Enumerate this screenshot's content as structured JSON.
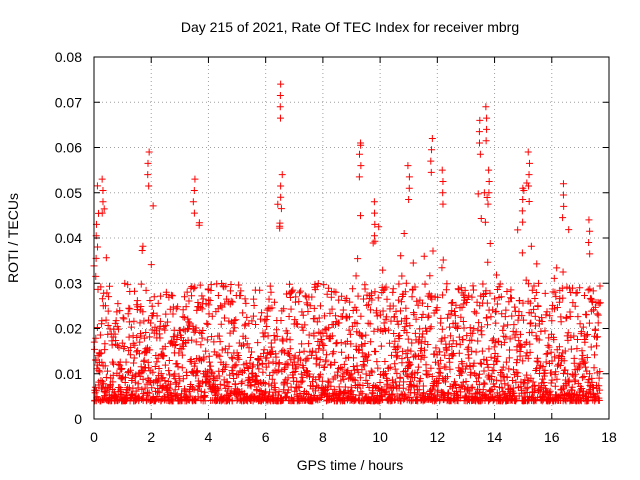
{
  "chart_data": {
    "type": "scatter",
    "title": "Day 215 of 2021, Rate Of TEC Index for receiver mbrg",
    "xlabel": "GPS time / hours",
    "ylabel": "ROTI / TECUs",
    "xlim": [
      0,
      18
    ],
    "ylim": [
      0,
      0.08
    ],
    "x_ticks": [
      0,
      2,
      4,
      6,
      8,
      10,
      12,
      14,
      16,
      18
    ],
    "x_tick_labels": [
      "0",
      "2",
      "4",
      "6",
      "8",
      "10",
      "12",
      "14",
      "16",
      "18"
    ],
    "y_ticks": [
      0,
      0.01,
      0.02,
      0.03,
      0.04,
      0.05,
      0.06,
      0.07,
      0.08
    ],
    "y_tick_labels": [
      "0",
      "0.01",
      "0.02",
      "0.03",
      "0.04",
      "0.05",
      "0.06",
      "0.07",
      "0.08"
    ],
    "grid": true,
    "marker": "+",
    "marker_color": "#ff0000",
    "series": [
      {
        "name": "ROTI",
        "x_range": [
          0,
          17.7
        ],
        "baseline": 0.012,
        "typical_spread": [
          0.004,
          0.03
        ],
        "peaks": [
          {
            "x": 0.3,
            "y": 0.053
          },
          {
            "x": 0.1,
            "y": 0.043
          },
          {
            "x": 1.9,
            "y": 0.059
          },
          {
            "x": 3.5,
            "y": 0.053
          },
          {
            "x": 6.5,
            "y": 0.074
          },
          {
            "x": 6.55,
            "y": 0.054
          },
          {
            "x": 9.3,
            "y": 0.061
          },
          {
            "x": 9.8,
            "y": 0.048
          },
          {
            "x": 11.0,
            "y": 0.056
          },
          {
            "x": 11.8,
            "y": 0.062
          },
          {
            "x": 12.2,
            "y": 0.055
          },
          {
            "x": 13.5,
            "y": 0.066
          },
          {
            "x": 13.7,
            "y": 0.069
          },
          {
            "x": 15.2,
            "y": 0.059
          },
          {
            "x": 15.0,
            "y": 0.051
          },
          {
            "x": 16.4,
            "y": 0.052
          },
          {
            "x": 17.3,
            "y": 0.044
          },
          {
            "x": 13.8,
            "y": 0.055
          }
        ]
      }
    ]
  }
}
